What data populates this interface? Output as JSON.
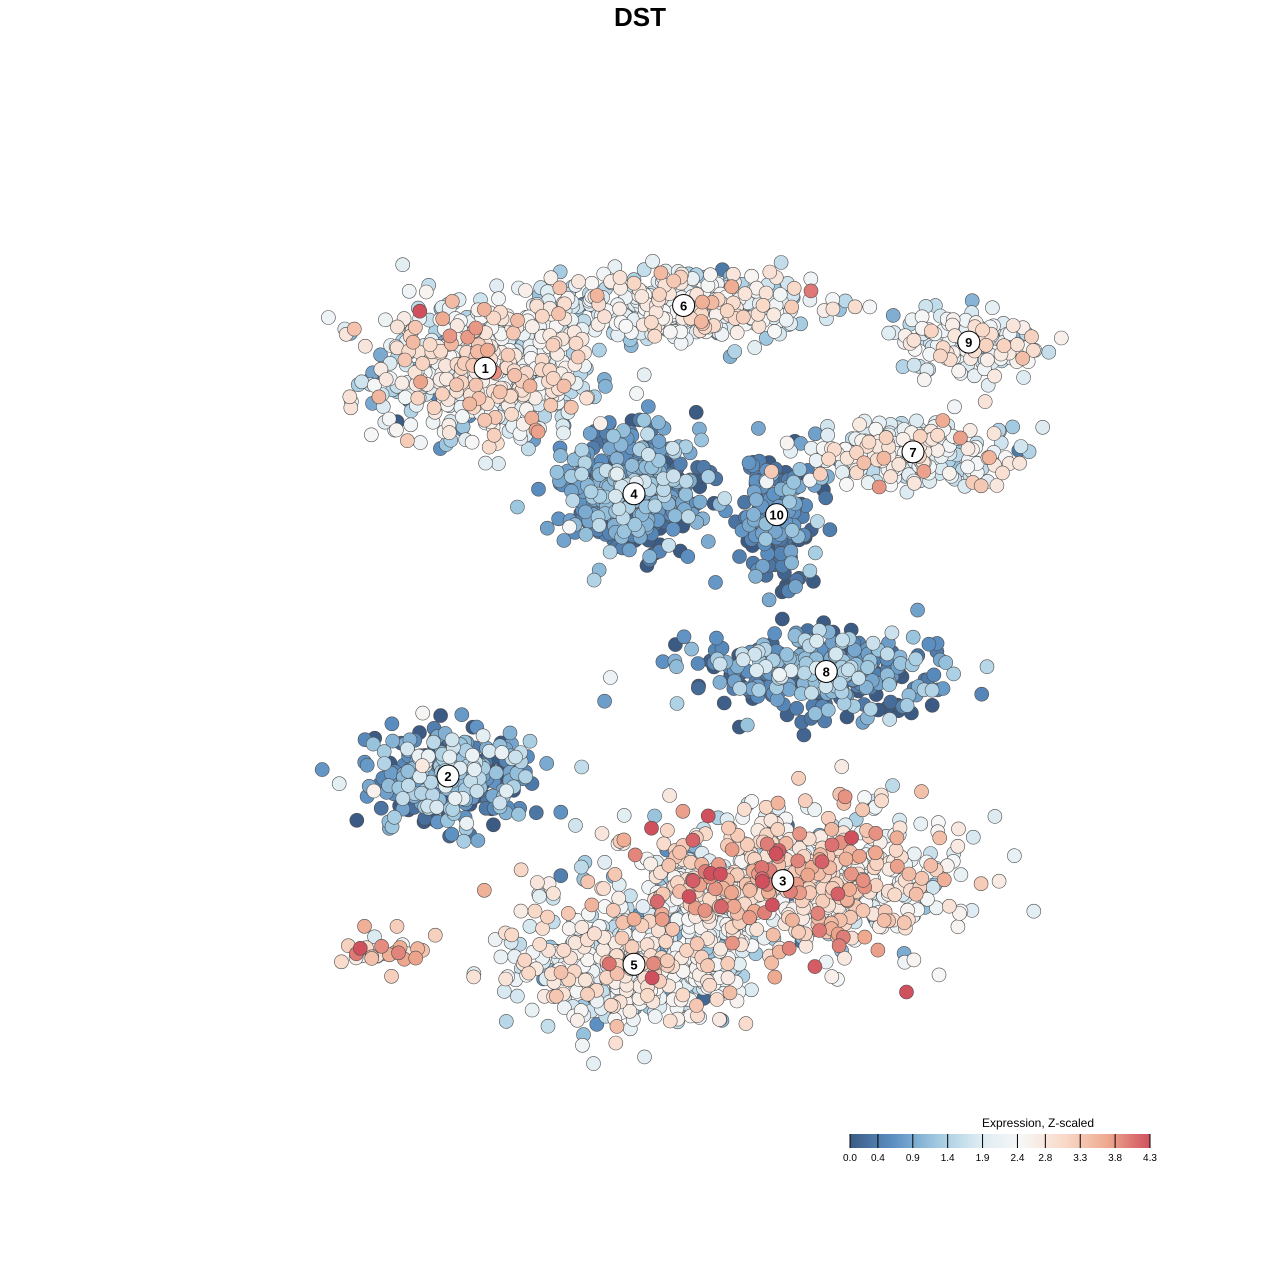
{
  "chart_data": {
    "type": "scatter",
    "title": "DST",
    "xlabel": "",
    "ylabel": "",
    "grid": false,
    "axes_visible": false,
    "point_style": {
      "fill_by": "expression",
      "stroke": "#4d4d4d"
    },
    "legend": {
      "title": "Expression, Z-scaled",
      "placement": "bottom-right",
      "range": [
        0.0,
        4.3
      ],
      "ticks": [
        "0.0",
        "0.4",
        "0.9",
        "1.4",
        "1.9",
        "2.4",
        "2.8",
        "3.3",
        "3.8",
        "4.3"
      ],
      "colors": [
        "#3b5b85",
        "#5b8fc2",
        "#9ec8e0",
        "#dcebf2",
        "#f7f7f7",
        "#f9d9c8",
        "#eeaa90",
        "#d0505e"
      ]
    },
    "clusters": [
      {
        "label": "1",
        "x": 2.1,
        "y": 7.4,
        "spread_x": 1.6,
        "spread_y": 1.2,
        "n": 700,
        "mean_expr": 2.1,
        "expr_sd": 0.7
      },
      {
        "label": "6",
        "x": 5.3,
        "y": 8.6,
        "spread_x": 1.9,
        "spread_y": 0.6,
        "n": 420,
        "mean_expr": 2.1,
        "expr_sd": 0.6
      },
      {
        "label": "9",
        "x": 9.9,
        "y": 7.9,
        "spread_x": 1.1,
        "spread_y": 0.5,
        "n": 150,
        "mean_expr": 2.1,
        "expr_sd": 0.6
      },
      {
        "label": "7",
        "x": 9.0,
        "y": 5.8,
        "spread_x": 1.6,
        "spread_y": 0.6,
        "n": 260,
        "mean_expr": 2.1,
        "expr_sd": 0.6
      },
      {
        "label": "4",
        "x": 4.5,
        "y": 5.0,
        "spread_x": 1.0,
        "spread_y": 1.0,
        "n": 480,
        "mean_expr": 0.6,
        "expr_sd": 0.5
      },
      {
        "label": "10",
        "x": 6.8,
        "y": 4.6,
        "spread_x": 0.6,
        "spread_y": 1.0,
        "n": 180,
        "mean_expr": 0.4,
        "expr_sd": 0.4
      },
      {
        "label": "8",
        "x": 7.6,
        "y": 1.6,
        "spread_x": 1.8,
        "spread_y": 0.7,
        "n": 340,
        "mean_expr": 0.6,
        "expr_sd": 0.6
      },
      {
        "label": "2",
        "x": 1.5,
        "y": -0.4,
        "spread_x": 1.2,
        "spread_y": 0.9,
        "n": 300,
        "mean_expr": 0.7,
        "expr_sd": 0.7
      },
      {
        "label": "3",
        "x": 6.9,
        "y": -2.4,
        "spread_x": 2.4,
        "spread_y": 1.2,
        "n": 780,
        "mean_expr": 2.6,
        "expr_sd": 0.8
      },
      {
        "label": "5",
        "x": 4.5,
        "y": -4.0,
        "spread_x": 1.7,
        "spread_y": 1.1,
        "n": 520,
        "mean_expr": 2.1,
        "expr_sd": 0.7
      },
      {
        "label": "",
        "x": 0.4,
        "y": -3.8,
        "spread_x": 0.6,
        "spread_y": 0.3,
        "n": 30,
        "mean_expr": 3.3,
        "expr_sd": 0.6
      }
    ],
    "xlim": [
      -2.5,
      12.5
    ],
    "ylim": [
      -6.5,
      11.0
    ]
  }
}
